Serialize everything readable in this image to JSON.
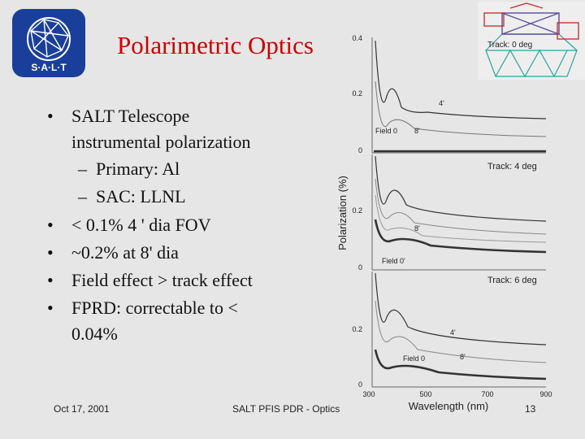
{
  "slide": {
    "title": "Polarimetric Optics",
    "logo_text": "S·A·L·T",
    "bullets": [
      {
        "text": "SALT Telescope instrumental polarization",
        "line1": "SALT Telescope",
        "line2": "instrumental polarization",
        "subs": [
          "Primary: Al",
          "SAC: LLNL"
        ]
      },
      {
        "text": "< 0.1% 4 ' dia FOV"
      },
      {
        "text": "~0.2% at 8' dia"
      },
      {
        "text": "Field effect > track effect"
      },
      {
        "text": "FPRD: correctable to < 0.04%",
        "line1": "FPRD: correctable to <",
        "line2": "0.04%"
      }
    ],
    "bullet_symbol": "•",
    "dash_symbol": "–"
  },
  "footer": {
    "date": "Oct 17, 2001",
    "center": "SALT PFIS PDR - Optics",
    "page": "13"
  },
  "figure": {
    "telescope_label": "Track: 0 deg",
    "y_axis_label": "Polarization (%)",
    "x_axis_label": "Wavelength (nm)",
    "x_ticks": [
      "300",
      "500",
      "700",
      "900"
    ],
    "panels": [
      {
        "track_label": "",
        "y_ticks": [
          "0.4",
          "0.2",
          "0"
        ],
        "labels": [
          "Field 0",
          "4'",
          "8'"
        ]
      },
      {
        "track_label": "Track: 4 deg",
        "y_ticks": [
          "0.2",
          "0"
        ],
        "labels": [
          "Field 0'",
          "8'"
        ]
      },
      {
        "track_label": "Track: 6 deg",
        "y_ticks": [
          "0.2",
          "0"
        ],
        "labels": [
          "Field 0",
          "4'",
          "8'"
        ]
      }
    ]
  }
}
